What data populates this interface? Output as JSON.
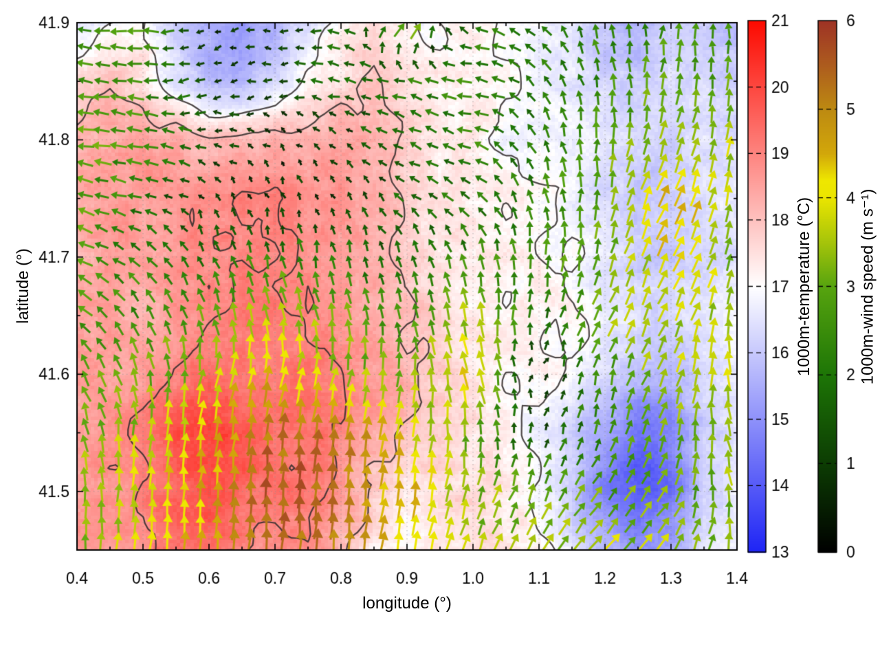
{
  "figure": {
    "background": "#ffffff",
    "frame_color": "#000000",
    "grid_dot_color": "#8a8a8a"
  },
  "chart_data": {
    "type": "heatmap",
    "title": "",
    "xlabel": "longitude (°)",
    "ylabel": "latitude (°)",
    "x_range": [
      0.4,
      1.4
    ],
    "y_range": [
      41.45,
      41.9
    ],
    "x_tick_labels": [
      "0.4",
      "0.5",
      "0.6",
      "0.7",
      "0.8",
      "0.9",
      "1.0",
      "1.1",
      "1.2",
      "1.3",
      "1.4"
    ],
    "x_tick_values": [
      0.4,
      0.5,
      0.6,
      0.7,
      0.8,
      0.9,
      1.0,
      1.1,
      1.2,
      1.3,
      1.4
    ],
    "y_tick_labels": [
      "41.5",
      "41.6",
      "41.7",
      "41.8",
      "41.9"
    ],
    "y_tick_values": [
      41.5,
      41.6,
      41.7,
      41.8,
      41.9
    ],
    "grid": "dotted-at-major-ticks",
    "legend_position": "right-colorbars",
    "contours": {
      "levels": [
        17,
        18,
        19
      ],
      "color": "#342e2e"
    },
    "temperature": {
      "label": "1000m-temperature (°C)",
      "tick_labels": [
        "21",
        "20",
        "19",
        "18",
        "17",
        "16",
        "15",
        "14",
        "13"
      ],
      "tick_values": [
        21,
        20,
        19,
        18,
        17,
        16,
        15,
        14,
        13
      ],
      "range": [
        13,
        21
      ],
      "colormap": [
        [
          13,
          "#1e24f5"
        ],
        [
          17,
          "#ffffff"
        ],
        [
          21,
          "#fc0a00"
        ]
      ],
      "grid_lons": [
        0.4,
        0.45,
        0.5,
        0.55,
        0.6,
        0.65,
        0.7,
        0.75,
        0.8,
        0.85,
        0.9,
        0.95,
        1.0,
        1.05,
        1.1,
        1.15,
        1.2,
        1.25,
        1.3,
        1.35,
        1.4
      ],
      "grid_lats": [
        41.9,
        41.85,
        41.8,
        41.75,
        41.7,
        41.65,
        41.6,
        41.55,
        41.5,
        41.45
      ],
      "values": [
        [
          16.3,
          17.0,
          17.2,
          16.0,
          15.3,
          15.2,
          15.5,
          16.5,
          17.3,
          17.6,
          17.0,
          17.0,
          17.2,
          17.0,
          16.8,
          16.5,
          15.8,
          15.5,
          16.2,
          16.0,
          15.8
        ],
        [
          17.5,
          18.0,
          17.5,
          16.5,
          15.8,
          15.5,
          16.2,
          17.0,
          17.5,
          18.2,
          17.5,
          17.2,
          17.2,
          17.0,
          16.8,
          16.6,
          16.2,
          16.0,
          16.4,
          16.4,
          16.2
        ],
        [
          18.3,
          18.5,
          18.5,
          18.3,
          18.0,
          18.2,
          18.3,
          18.4,
          18.5,
          18.3,
          17.8,
          17.3,
          17.2,
          17.0,
          16.9,
          16.8,
          16.5,
          16.3,
          16.2,
          16.5,
          16.4
        ],
        [
          18.4,
          18.6,
          18.7,
          18.8,
          18.9,
          19.0,
          19.0,
          18.9,
          18.7,
          18.4,
          17.8,
          17.4,
          17.2,
          17.1,
          17.0,
          16.8,
          16.3,
          15.9,
          16.0,
          16.4,
          16.6
        ],
        [
          18.3,
          18.5,
          18.6,
          18.7,
          18.9,
          19.0,
          19.0,
          18.8,
          18.6,
          18.3,
          17.8,
          17.5,
          17.3,
          17.2,
          17.1,
          17.0,
          16.6,
          16.1,
          15.9,
          16.2,
          16.5
        ],
        [
          18.4,
          18.5,
          18.3,
          18.6,
          19.0,
          19.2,
          19.2,
          19.0,
          18.7,
          18.4,
          18.0,
          17.6,
          17.3,
          17.2,
          17.2,
          17.0,
          16.7,
          16.4,
          16.3,
          16.6,
          16.8
        ],
        [
          18.5,
          18.6,
          18.5,
          19.0,
          19.4,
          19.3,
          19.2,
          19.2,
          19.0,
          18.6,
          18.2,
          17.8,
          17.4,
          17.2,
          17.1,
          16.9,
          16.4,
          15.8,
          15.6,
          16.2,
          16.6
        ],
        [
          18.6,
          18.8,
          19.1,
          19.8,
          20.2,
          19.8,
          19.4,
          19.3,
          19.0,
          18.4,
          18.0,
          17.8,
          17.5,
          17.2,
          16.9,
          16.2,
          15.2,
          14.4,
          14.8,
          16.0,
          16.4
        ],
        [
          18.6,
          18.8,
          19.0,
          19.6,
          20.0,
          19.5,
          19.2,
          19.2,
          18.8,
          17.8,
          17.4,
          17.6,
          17.6,
          17.4,
          17.0,
          16.0,
          14.6,
          13.8,
          14.4,
          16.0,
          16.6
        ],
        [
          18.5,
          18.7,
          18.9,
          19.2,
          19.4,
          19.0,
          18.8,
          19.0,
          18.2,
          17.2,
          17.0,
          17.4,
          17.6,
          17.5,
          17.2,
          16.6,
          15.6,
          15.2,
          15.4,
          16.4,
          16.8
        ]
      ]
    },
    "wind": {
      "label": "1000m-wind speed (m s⁻¹)",
      "tick_labels": [
        "6",
        "5",
        "4",
        "3",
        "2",
        "1",
        "0"
      ],
      "tick_values": [
        6,
        5,
        4,
        3,
        2,
        1,
        0
      ],
      "range": [
        0,
        6
      ],
      "colormap": [
        [
          0,
          "#000000"
        ],
        [
          1,
          "#0c3c03"
        ],
        [
          2,
          "#1d7506"
        ],
        [
          3,
          "#57a40f"
        ],
        [
          3.5,
          "#a6c40a"
        ],
        [
          4,
          "#ebe500"
        ],
        [
          4.2,
          "#eee700"
        ],
        [
          4.5,
          "#d2a70a"
        ],
        [
          5,
          "#bd8a11"
        ],
        [
          5.5,
          "#ad5c1e"
        ],
        [
          6,
          "#9e3325"
        ]
      ],
      "grid_lons": [
        0.4,
        0.5,
        0.6,
        0.7,
        0.8,
        0.9,
        1.0,
        1.1,
        1.2,
        1.3,
        1.4
      ],
      "grid_lats": [
        41.9,
        41.85,
        41.8,
        41.75,
        41.7,
        41.65,
        41.6,
        41.55,
        41.5,
        41.45
      ],
      "u": [
        [
          -2.6,
          -2.8,
          -0.6,
          -0.8,
          -2.0,
          2.8,
          -2.2,
          -1.5,
          -0.5,
          0.3,
          -0.5
        ],
        [
          -2.8,
          -2.5,
          -1.0,
          -1.2,
          -1.8,
          -2.0,
          -2.4,
          -1.2,
          -0.4,
          0.5,
          0.2
        ],
        [
          -3.0,
          -2.6,
          -1.4,
          -0.6,
          -0.8,
          -1.8,
          -2.2,
          -1.0,
          0.2,
          1.0,
          0.5
        ],
        [
          -2.8,
          -2.0,
          -0.4,
          -0.2,
          -0.4,
          -1.4,
          -1.6,
          -0.6,
          0.4,
          2.0,
          0.6
        ],
        [
          -2.6,
          -1.6,
          -0.8,
          -0.5,
          -0.4,
          -0.8,
          -0.4,
          0.0,
          0.8,
          1.8,
          1.0
        ],
        [
          -2.2,
          -1.2,
          -0.8,
          -1.0,
          -0.6,
          -0.4,
          -0.8,
          0.5,
          1.4,
          1.6,
          0.4
        ],
        [
          -1.6,
          -0.8,
          0.8,
          1.2,
          0.8,
          0.2,
          -1.0,
          0.2,
          0.6,
          1.4,
          -0.6
        ],
        [
          -0.8,
          0.2,
          0.6,
          0.4,
          0.6,
          0.8,
          -0.5,
          0.4,
          0.8,
          1.0,
          -1.0
        ],
        [
          -0.2,
          0.3,
          0.4,
          0.3,
          0.4,
          0.6,
          1.0,
          1.2,
          1.6,
          1.6,
          -0.8
        ],
        [
          0.0,
          0.4,
          0.5,
          0.4,
          0.5,
          0.8,
          1.2,
          2.0,
          2.6,
          2.0,
          0.4
        ]
      ],
      "v": [
        [
          0.2,
          0.0,
          -0.4,
          -0.2,
          0.3,
          3.0,
          0.5,
          1.0,
          2.2,
          2.6,
          2.4
        ],
        [
          0.3,
          0.2,
          -0.5,
          0.0,
          0.4,
          0.5,
          0.3,
          1.5,
          2.5,
          3.0,
          2.8
        ],
        [
          0.5,
          0.4,
          0.3,
          0.5,
          0.6,
          0.8,
          0.8,
          2.0,
          2.8,
          3.2,
          3.5
        ],
        [
          0.8,
          0.6,
          0.8,
          0.7,
          0.8,
          1.0,
          1.2,
          2.4,
          3.0,
          4.2,
          3.4
        ],
        [
          1.2,
          1.4,
          1.8,
          2.2,
          2.0,
          1.6,
          2.4,
          2.6,
          3.0,
          3.8,
          3.2
        ],
        [
          1.8,
          2.2,
          3.0,
          3.6,
          3.0,
          2.4,
          3.6,
          1.8,
          3.0,
          3.4,
          3.6
        ],
        [
          2.4,
          3.0,
          3.6,
          4.4,
          3.4,
          3.2,
          4.2,
          0.5,
          2.6,
          3.2,
          3.8
        ],
        [
          3.0,
          3.6,
          4.2,
          5.2,
          5.0,
          4.0,
          3.0,
          1.2,
          2.4,
          3.0,
          3.6
        ],
        [
          3.4,
          3.8,
          4.6,
          5.6,
          5.2,
          4.4,
          3.2,
          2.8,
          2.4,
          2.6,
          3.4
        ],
        [
          3.4,
          3.8,
          4.4,
          5.4,
          5.0,
          4.2,
          3.4,
          3.0,
          2.6,
          2.8,
          3.2
        ]
      ]
    }
  }
}
